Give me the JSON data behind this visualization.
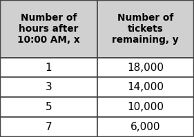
{
  "col1_header": "Number of\nhours after\n10:00 AM, x",
  "col2_header": "Number of\ntickets\nremaining, y",
  "rows": [
    [
      "1",
      "18,000"
    ],
    [
      "3",
      "14,000"
    ],
    [
      "5",
      "10,000"
    ],
    [
      "7",
      "6,000"
    ]
  ],
  "header_bg": "#d0d0d0",
  "row_bg": "#ffffff",
  "border_color": "#444444",
  "header_font_size": 9.8,
  "data_font_size": 11.0,
  "header_text_color": "#000000",
  "data_text_color": "#000000",
  "fig_bg": "#d0d0d0",
  "lw": 1.2
}
